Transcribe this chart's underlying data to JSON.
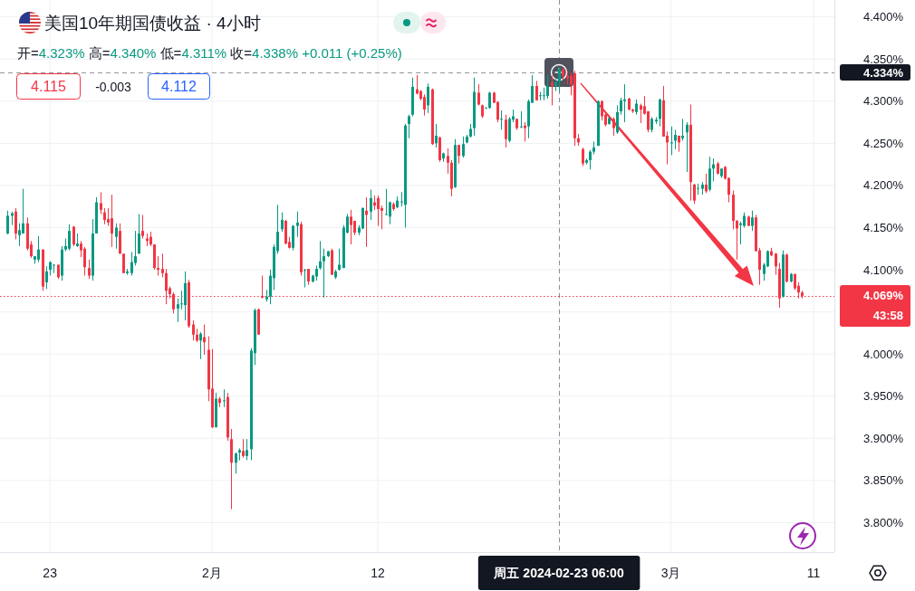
{
  "chart_data": {
    "type": "candlestick",
    "title": "美国10年期国债收益 · 4小时",
    "annotations": [
      "开=4.323% 高=4.340% 低=4.311% 收=4.338% +0.011 (+0.25%)",
      "4.115",
      "-0.003",
      "4.112"
    ],
    "categories": [
      null,
      null,
      null,
      null,
      null,
      null,
      null,
      null,
      null,
      null,
      null,
      "23",
      null,
      null,
      null,
      null,
      null,
      null,
      null,
      null,
      null,
      null,
      null,
      null,
      null,
      null,
      null,
      null,
      null,
      null,
      null,
      null,
      null,
      null,
      null,
      null,
      null,
      null,
      null,
      null,
      null,
      null,
      null,
      null,
      null,
      null,
      null,
      null,
      null,
      null,
      null,
      null,
      null,
      "2月",
      null,
      null,
      null,
      null,
      null,
      null,
      null,
      null,
      null,
      null,
      null,
      null,
      null,
      null,
      null,
      null,
      null,
      null,
      null,
      null,
      null,
      null,
      null,
      null,
      null,
      null,
      null,
      null,
      null,
      null,
      null,
      null,
      null,
      null,
      null,
      null,
      null,
      null,
      null,
      null,
      null,
      null,
      "12",
      null,
      null,
      null,
      null,
      null,
      null,
      null,
      null,
      null,
      null,
      null,
      null,
      null,
      null,
      null,
      null,
      null,
      null,
      null,
      null,
      null,
      null,
      null,
      null,
      null,
      null,
      null,
      null,
      null,
      null,
      null,
      null,
      null,
      null,
      null,
      null,
      null,
      null,
      null,
      null,
      null,
      null,
      null,
      null,
      null,
      null,
      "周五 2024-02-23 06:00",
      null,
      null,
      null,
      null,
      null,
      null,
      null,
      null,
      null,
      null,
      null,
      null,
      null,
      null,
      null,
      null,
      null,
      null,
      null,
      null,
      null,
      null,
      null,
      null,
      null,
      null,
      null,
      null,
      "3月",
      null,
      null,
      null,
      null,
      null,
      null,
      null,
      null,
      null,
      null,
      null,
      null,
      null,
      null,
      null,
      null,
      null,
      null,
      null,
      null,
      null,
      null,
      null,
      null,
      null,
      null,
      null,
      null,
      null,
      null,
      null,
      null,
      null,
      null,
      null,
      null,
      "11"
    ],
    "ohlc": [
      [
        4.143,
        4.17,
        4.142,
        4.164
      ],
      [
        4.164,
        4.169,
        4.153,
        4.167
      ],
      [
        4.169,
        4.173,
        4.136,
        4.143
      ],
      [
        4.141,
        4.155,
        4.128,
        4.147
      ],
      [
        4.143,
        4.196,
        4.143,
        4.155
      ],
      [
        4.155,
        4.162,
        4.123,
        4.125
      ],
      [
        4.13,
        4.134,
        4.114,
        4.116
      ],
      [
        4.112,
        4.116,
        4.107,
        4.116
      ],
      [
        4.112,
        4.14,
        4.109,
        4.124
      ],
      [
        4.124,
        4.124,
        4.075,
        4.08
      ],
      [
        4.085,
        4.104,
        4.077,
        4.098
      ],
      [
        4.1,
        4.11,
        4.093,
        4.109
      ],
      [
        4.105,
        4.106,
        4.096,
        4.106
      ],
      [
        4.106,
        4.106,
        4.089,
        4.091
      ],
      [
        4.093,
        4.128,
        4.087,
        4.124
      ],
      [
        4.124,
        4.137,
        4.122,
        4.128
      ],
      [
        4.125,
        4.154,
        4.123,
        4.146
      ],
      [
        4.151,
        4.152,
        4.128,
        4.13
      ],
      [
        4.128,
        4.143,
        4.127,
        4.131
      ],
      [
        4.131,
        4.134,
        4.115,
        4.123
      ],
      [
        4.125,
        4.127,
        4.093,
        4.103
      ],
      [
        4.102,
        4.112,
        4.089,
        4.093
      ],
      [
        4.093,
        4.16,
        4.087,
        4.143
      ],
      [
        4.143,
        4.186,
        4.143,
        4.18
      ],
      [
        4.179,
        4.192,
        4.166,
        4.171
      ],
      [
        4.168,
        4.173,
        4.154,
        4.159
      ],
      [
        4.16,
        4.173,
        4.152,
        4.156
      ],
      [
        4.161,
        4.189,
        4.127,
        4.143
      ],
      [
        4.139,
        4.155,
        4.125,
        4.15
      ],
      [
        4.146,
        4.155,
        4.119,
        4.119
      ],
      [
        4.119,
        4.119,
        4.096,
        4.096
      ],
      [
        4.096,
        4.101,
        4.094,
        4.098
      ],
      [
        4.096,
        4.121,
        4.093,
        4.109
      ],
      [
        4.108,
        4.146,
        4.105,
        4.116
      ],
      [
        4.119,
        4.166,
        4.119,
        4.143
      ],
      [
        4.146,
        4.165,
        4.137,
        4.14
      ],
      [
        4.137,
        4.143,
        4.128,
        4.134
      ],
      [
        4.139,
        4.145,
        4.128,
        4.13
      ],
      [
        4.13,
        4.13,
        4.1,
        4.102
      ],
      [
        4.102,
        4.116,
        4.093,
        4.1
      ],
      [
        4.101,
        4.119,
        4.091,
        4.096
      ],
      [
        4.096,
        4.101,
        4.059,
        4.075
      ],
      [
        4.078,
        4.08,
        4.066,
        4.071
      ],
      [
        4.071,
        4.073,
        4.048,
        4.053
      ],
      [
        4.054,
        4.066,
        4.038,
        4.059
      ],
      [
        4.059,
        4.075,
        4.053,
        4.06
      ],
      [
        4.058,
        4.098,
        4.04,
        4.084
      ],
      [
        4.085,
        4.088,
        4.031,
        4.033
      ],
      [
        4.035,
        4.04,
        4.016,
        4.023
      ],
      [
        4.023,
        4.03,
        4.014,
        4.016
      ],
      [
        4.016,
        4.026,
        3.994,
        4.024
      ],
      [
        4.02,
        4.035,
        3.999,
        4.014
      ],
      [
        4.005,
        4.021,
        3.944,
        3.958
      ],
      [
        3.959,
        4.006,
        3.912,
        3.913
      ],
      [
        3.913,
        3.954,
        3.913,
        3.947
      ],
      [
        3.947,
        3.949,
        3.937,
        3.942
      ],
      [
        3.944,
        3.958,
        3.937,
        3.945
      ],
      [
        3.949,
        3.954,
        3.897,
        3.901
      ],
      [
        3.899,
        3.911,
        3.816,
        3.871
      ],
      [
        3.871,
        3.883,
        3.858,
        3.882
      ],
      [
        3.883,
        3.888,
        3.874,
        3.886
      ],
      [
        3.885,
        3.899,
        3.877,
        3.879
      ],
      [
        3.879,
        3.899,
        3.874,
        3.886
      ],
      [
        3.887,
        4.007,
        3.874,
        4.004
      ],
      [
        4.001,
        4.054,
        3.987,
        4.052
      ],
      [
        4.053,
        4.054,
        4.023,
        4.023
      ],
      [
        4.069,
        4.093,
        4.066,
        4.067
      ],
      [
        4.065,
        4.076,
        4.062,
        4.068
      ],
      [
        4.068,
        4.1,
        4.059,
        4.093
      ],
      [
        4.09,
        4.13,
        4.076,
        4.127
      ],
      [
        4.122,
        4.177,
        4.119,
        4.145
      ],
      [
        4.148,
        4.168,
        4.145,
        4.159
      ],
      [
        4.158,
        4.159,
        4.13,
        4.131
      ],
      [
        4.133,
        4.139,
        4.125,
        4.126
      ],
      [
        4.126,
        4.153,
        4.123,
        4.152
      ],
      [
        4.152,
        4.169,
        4.139,
        4.156
      ],
      [
        4.154,
        4.157,
        4.093,
        4.097
      ],
      [
        4.099,
        4.101,
        4.079,
        4.1
      ],
      [
        4.101,
        4.101,
        4.082,
        4.086
      ],
      [
        4.086,
        4.094,
        4.085,
        4.093
      ],
      [
        4.092,
        4.105,
        4.087,
        4.101
      ],
      [
        4.102,
        4.134,
        4.1,
        4.11
      ],
      [
        4.11,
        4.125,
        4.067,
        4.116
      ],
      [
        4.116,
        4.122,
        4.115,
        4.122
      ],
      [
        4.123,
        4.125,
        4.094,
        4.094
      ],
      [
        4.091,
        4.1,
        4.089,
        4.098
      ],
      [
        4.1,
        4.125,
        4.099,
        4.106
      ],
      [
        4.102,
        4.153,
        4.102,
        4.15
      ],
      [
        4.144,
        4.166,
        4.143,
        4.163
      ],
      [
        4.163,
        4.171,
        4.13,
        4.153
      ],
      [
        4.158,
        4.158,
        4.141,
        4.144
      ],
      [
        4.144,
        4.153,
        4.141,
        4.15
      ],
      [
        4.149,
        4.174,
        4.148,
        4.173
      ],
      [
        4.17,
        4.186,
        4.127,
        4.165
      ],
      [
        4.169,
        4.195,
        4.159,
        4.185
      ],
      [
        4.18,
        4.188,
        4.171,
        4.176
      ],
      [
        4.185,
        4.188,
        4.152,
        4.172
      ],
      [
        4.173,
        4.176,
        4.148,
        4.17
      ],
      [
        4.165,
        4.196,
        4.165,
        4.166
      ],
      [
        4.163,
        4.181,
        4.154,
        4.18
      ],
      [
        4.178,
        4.18,
        4.17,
        4.172
      ],
      [
        4.174,
        4.187,
        4.173,
        4.182
      ],
      [
        4.18,
        4.192,
        4.175,
        4.181
      ],
      [
        4.177,
        4.273,
        4.15,
        4.271
      ],
      [
        4.273,
        4.284,
        4.256,
        4.282
      ],
      [
        4.284,
        4.328,
        4.282,
        4.317
      ],
      [
        4.314,
        4.331,
        4.308,
        4.309
      ],
      [
        4.312,
        4.313,
        4.301,
        4.303
      ],
      [
        4.305,
        4.308,
        4.283,
        4.29
      ],
      [
        4.295,
        4.321,
        4.286,
        4.317
      ],
      [
        4.314,
        4.315,
        4.248,
        4.249
      ],
      [
        4.25,
        4.273,
        4.245,
        4.259
      ],
      [
        4.257,
        4.258,
        4.228,
        4.23
      ],
      [
        4.232,
        4.239,
        4.228,
        4.238
      ],
      [
        4.235,
        4.244,
        4.214,
        4.227
      ],
      [
        4.227,
        4.23,
        4.187,
        4.196
      ],
      [
        4.198,
        4.255,
        4.197,
        4.248
      ],
      [
        4.248,
        4.248,
        4.226,
        4.235
      ],
      [
        4.235,
        4.258,
        4.233,
        4.249
      ],
      [
        4.251,
        4.26,
        4.25,
        4.258
      ],
      [
        4.258,
        4.273,
        4.257,
        4.267
      ],
      [
        4.268,
        4.328,
        4.259,
        4.311
      ],
      [
        4.31,
        4.32,
        4.295,
        4.296
      ],
      [
        4.295,
        4.296,
        4.28,
        4.282
      ],
      [
        4.292,
        4.293,
        4.292,
        4.292
      ],
      [
        4.292,
        4.311,
        4.291,
        4.31
      ],
      [
        4.31,
        4.311,
        4.298,
        4.298
      ],
      [
        4.299,
        4.3,
        4.275,
        4.278
      ],
      [
        4.278,
        4.289,
        4.266,
        4.279
      ],
      [
        4.278,
        4.284,
        4.245,
        4.255
      ],
      [
        4.253,
        4.281,
        4.251,
        4.279
      ],
      [
        4.278,
        4.29,
        4.275,
        4.282
      ],
      [
        4.279,
        4.279,
        4.266,
        4.268
      ],
      [
        4.27,
        4.288,
        4.268,
        4.27
      ],
      [
        4.271,
        4.275,
        4.252,
        4.268
      ],
      [
        4.27,
        4.302,
        4.256,
        4.3
      ],
      [
        4.298,
        4.331,
        4.298,
        4.318
      ],
      [
        4.318,
        4.324,
        4.301,
        4.301
      ],
      [
        4.306,
        4.311,
        4.301,
        4.307
      ],
      [
        4.306,
        4.316,
        4.301,
        4.307
      ],
      [
        4.306,
        4.331,
        4.303,
        4.318
      ],
      [
        4.322,
        4.33,
        4.295,
        4.318
      ],
      [
        4.318,
        4.326,
        4.312,
        4.323
      ],
      [
        4.323,
        4.34,
        4.311,
        4.338
      ],
      [
        4.338,
        4.339,
        4.325,
        4.33
      ],
      [
        4.33,
        4.336,
        4.32,
        4.327
      ],
      [
        4.33,
        4.334,
        4.307,
        4.32
      ],
      [
        4.333,
        4.336,
        4.247,
        4.256
      ],
      [
        4.256,
        4.261,
        4.247,
        4.251
      ],
      [
        4.243,
        4.245,
        4.223,
        4.226
      ],
      [
        4.227,
        4.232,
        4.225,
        4.23
      ],
      [
        4.23,
        4.242,
        4.219,
        4.24
      ],
      [
        4.24,
        4.252,
        4.237,
        4.245
      ],
      [
        4.247,
        4.301,
        4.247,
        4.3
      ],
      [
        4.3,
        4.301,
        4.277,
        4.282
      ],
      [
        4.284,
        4.286,
        4.27,
        4.272
      ],
      [
        4.273,
        4.281,
        4.272,
        4.28
      ],
      [
        4.279,
        4.281,
        4.259,
        4.268
      ],
      [
        4.263,
        4.295,
        4.261,
        4.287
      ],
      [
        4.288,
        4.304,
        4.284,
        4.301
      ],
      [
        4.3,
        4.32,
        4.275,
        4.302
      ],
      [
        4.303,
        4.304,
        4.289,
        4.29
      ],
      [
        4.29,
        4.291,
        4.286,
        4.288
      ],
      [
        4.287,
        4.302,
        4.284,
        4.297
      ],
      [
        4.295,
        4.297,
        4.274,
        4.29
      ],
      [
        4.294,
        4.306,
        4.284,
        4.285
      ],
      [
        4.288,
        4.288,
        4.263,
        4.266
      ],
      [
        4.266,
        4.281,
        4.263,
        4.279
      ],
      [
        4.276,
        4.281,
        4.273,
        4.278
      ],
      [
        4.279,
        4.303,
        4.27,
        4.302
      ],
      [
        4.301,
        4.318,
        4.258,
        4.258
      ],
      [
        4.259,
        4.264,
        4.225,
        4.251
      ],
      [
        4.251,
        4.27,
        4.236,
        4.251
      ],
      [
        4.253,
        4.266,
        4.243,
        4.26
      ],
      [
        4.259,
        4.259,
        4.24,
        4.251
      ],
      [
        4.256,
        4.279,
        4.253,
        4.259
      ],
      [
        4.263,
        4.275,
        4.216,
        4.272
      ],
      [
        4.272,
        4.296,
        4.182,
        4.204
      ],
      [
        4.201,
        4.202,
        4.178,
        4.182
      ],
      [
        4.197,
        4.202,
        4.189,
        4.197
      ],
      [
        4.196,
        4.204,
        4.189,
        4.201
      ],
      [
        4.201,
        4.214,
        4.191,
        4.193
      ],
      [
        4.195,
        4.234,
        4.193,
        4.22
      ],
      [
        4.22,
        4.232,
        4.205,
        4.225
      ],
      [
        4.226,
        4.228,
        4.213,
        4.214
      ],
      [
        4.211,
        4.22,
        4.209,
        4.22
      ],
      [
        4.222,
        4.223,
        4.207,
        4.208
      ],
      [
        4.209,
        4.209,
        4.18,
        4.189
      ],
      [
        4.189,
        4.194,
        4.148,
        4.158
      ],
      [
        4.158,
        4.159,
        4.112,
        4.149
      ],
      [
        4.153,
        4.157,
        4.13,
        4.155
      ],
      [
        4.152,
        4.168,
        4.15,
        4.164
      ],
      [
        4.163,
        4.164,
        4.152,
        4.152
      ],
      [
        4.152,
        4.17,
        4.146,
        4.162
      ],
      [
        4.162,
        4.165,
        4.122,
        4.122
      ],
      [
        4.123,
        4.126,
        4.082,
        4.1
      ],
      [
        4.095,
        4.108,
        4.087,
        4.106
      ],
      [
        4.104,
        4.123,
        4.103,
        4.122
      ],
      [
        4.122,
        4.126,
        4.116,
        4.117
      ],
      [
        4.119,
        4.12,
        4.094,
        4.104
      ],
      [
        4.101,
        4.108,
        4.055,
        4.066
      ],
      [
        4.068,
        4.123,
        4.067,
        4.118
      ],
      [
        4.118,
        4.119,
        4.085,
        4.086
      ],
      [
        4.086,
        4.096,
        4.085,
        4.095
      ],
      [
        4.095,
        4.095,
        4.076,
        4.078
      ],
      [
        4.081,
        4.085,
        4.066,
        4.073
      ],
      [
        4.073,
        4.075,
        4.066,
        4.069
      ],
      null,
      null,
      null
    ],
    "ylim": [
      3.765,
      4.42
    ],
    "yticks": [
      {
        "value": 3.8,
        "label": "3.800%"
      },
      {
        "value": 3.85,
        "label": "3.850%"
      },
      {
        "value": 3.9,
        "label": "3.900%"
      },
      {
        "value": 3.95,
        "label": "3.950%"
      },
      {
        "value": 4.0,
        "label": "4.000%"
      },
      {
        "value": 4.05,
        "label": null
      },
      {
        "value": 4.1,
        "label": "4.100%"
      },
      {
        "value": 4.15,
        "label": "4.150%"
      },
      {
        "value": 4.2,
        "label": "4.200%"
      },
      {
        "value": 4.25,
        "label": "4.250%"
      },
      {
        "value": 4.3,
        "label": "4.300%"
      },
      {
        "value": 4.35,
        "label": "4.350%"
      },
      {
        "value": 4.4,
        "label": "4.400%"
      }
    ],
    "grid": true,
    "ref_lines": [
      {
        "axis": "y",
        "value": 4.334,
        "label": "4.334%",
        "color": "#131722",
        "line_style": "dashed"
      },
      {
        "axis": "y",
        "value": 4.069,
        "label": "4.069%\n43:58",
        "color": "#f23645",
        "line_style": "dotted"
      },
      {
        "axis": "x",
        "value": "周五 2024-02-23 06:00",
        "color": "#131722",
        "line_style": "dashed"
      }
    ]
  }
}
